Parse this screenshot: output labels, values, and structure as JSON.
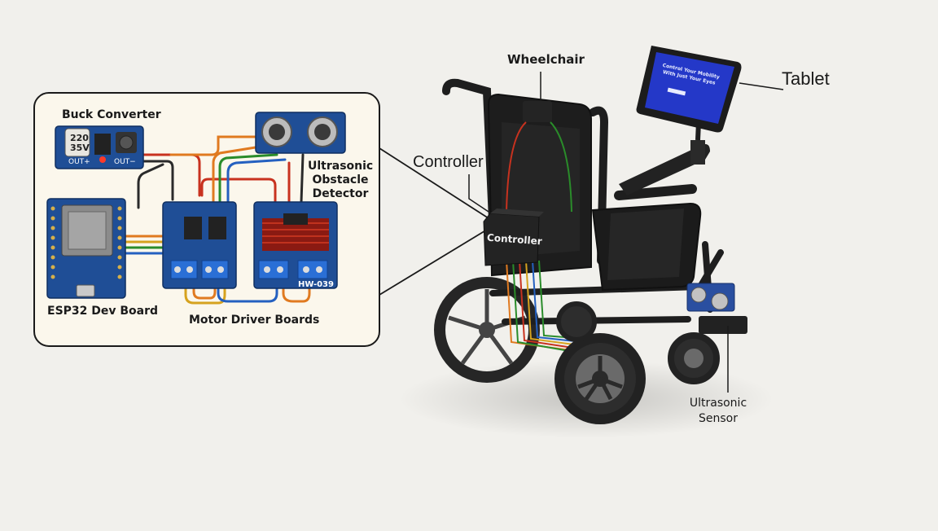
{
  "inset": {
    "buck_converter": {
      "title": "Buck Converter",
      "capacitor_text_1": "220",
      "capacitor_text_2": "35V",
      "out_plus": "OUT+",
      "out_minus": "OUT−"
    },
    "ultrasonic_detector": {
      "line1": "Ultrasonic",
      "line2": "Obstacle",
      "line3": "Detector"
    },
    "esp32_label": "ESP32 Dev Board",
    "motor_driver_label": "Motor Driver Boards",
    "driver_chip_label": "HW-039"
  },
  "main": {
    "wheelchair_label": "Wheelchair",
    "tablet_label": "Tablet",
    "controller_label": "Controller",
    "controller_box_text": "Controller",
    "ultrasonic_sensor": {
      "line1": "Ultrasonic",
      "line2": "Sensor"
    },
    "tablet_screen": {
      "line1": "Control Your Mobility",
      "line2": "With Just Your Eyes"
    }
  },
  "colors": {
    "background": "#f1f0ec",
    "inset_bg": "#fbf7ec",
    "pcb_blue": "#1f4e96",
    "terminal_blue": "#2a6fd6",
    "frame_black": "#1e1e1e",
    "wire_orange": "#e07a20",
    "wire_red": "#c8321f",
    "wire_green": "#2a8c2a",
    "wire_blue": "#2460c0",
    "wire_black": "#2a2a2a",
    "tablet_screen": "#2438c8"
  }
}
